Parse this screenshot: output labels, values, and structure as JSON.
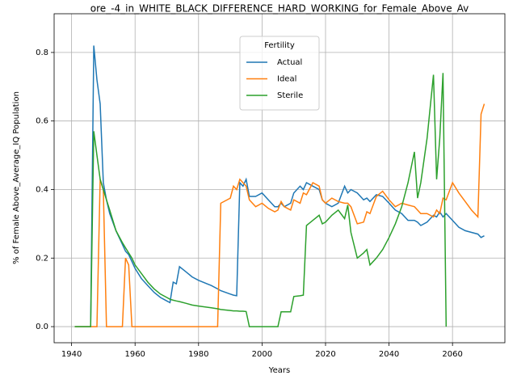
{
  "chart_data": {
    "type": "line",
    "title": "ore_-4_in_WHITE_BLACK_DIFFERENCE_HARD_WORKING_for_Female_Above_Av",
    "xlabel": "Years",
    "ylabel": "% of Female Above_Average_IQ Population",
    "x": [
      1941,
      1946,
      1947,
      1948,
      1949,
      1950,
      1951,
      1952,
      1954,
      1956,
      1957,
      1958,
      1959,
      1960,
      1962,
      1964,
      1966,
      1968,
      1970,
      1971,
      1972,
      1973,
      1974,
      1976,
      1978,
      1980,
      1984,
      1986,
      1987,
      1990,
      1991,
      1992,
      1993,
      1994,
      1995,
      1996,
      1998,
      2000,
      2002,
      2004,
      2005,
      2006,
      2007,
      2009,
      2010,
      2012,
      2013,
      2014,
      2016,
      2018,
      2019,
      2020,
      2022,
      2024,
      2026,
      2027,
      2028,
      2030,
      2032,
      2033,
      2034,
      2036,
      2038,
      2040,
      2042,
      2044,
      2046,
      2048,
      2049,
      2050,
      2052,
      2054,
      2055,
      2056,
      2057,
      2058,
      2060,
      2062,
      2064,
      2066,
      2068,
      2069,
      2070
    ],
    "series": [
      {
        "name": "Actual",
        "color": "#1f77b4",
        "values": [
          0,
          0,
          0.82,
          0.72,
          0.65,
          0.42,
          0.37,
          0.33,
          0.28,
          0.24,
          0.22,
          0.21,
          0.19,
          0.17,
          0.14,
          0.12,
          0.1,
          0.085,
          0.075,
          0.07,
          0.13,
          0.125,
          0.175,
          0.16,
          0.145,
          0.135,
          0.12,
          0.11,
          0.105,
          0.095,
          0.092,
          0.09,
          0.42,
          0.41,
          0.43,
          0.38,
          0.38,
          0.39,
          0.37,
          0.35,
          0.35,
          0.36,
          0.35,
          0.36,
          0.39,
          0.41,
          0.4,
          0.42,
          0.41,
          0.4,
          0.37,
          0.36,
          0.35,
          0.36,
          0.41,
          0.39,
          0.4,
          0.39,
          0.37,
          0.375,
          0.365,
          0.385,
          0.38,
          0.36,
          0.34,
          0.33,
          0.31,
          0.31,
          0.305,
          0.295,
          0.305,
          0.325,
          0.32,
          0.335,
          0.32,
          0.33,
          0.31,
          0.29,
          0.28,
          0.275,
          0.27,
          0.26,
          0.265
        ]
      },
      {
        "name": "Ideal",
        "color": "#ff7f0e",
        "values": [
          0,
          0,
          0,
          0,
          0.43,
          0.4,
          0,
          0,
          0,
          0,
          0.2,
          0.18,
          0,
          0,
          0,
          0,
          0,
          0,
          0,
          0,
          0,
          0,
          0,
          0,
          0,
          0,
          0,
          0,
          0.36,
          0.375,
          0.41,
          0.4,
          0.43,
          0.42,
          0.41,
          0.37,
          0.35,
          0.36,
          0.345,
          0.335,
          0.34,
          0.365,
          0.35,
          0.34,
          0.37,
          0.36,
          0.39,
          0.385,
          0.42,
          0.41,
          0.37,
          0.36,
          0.375,
          0.365,
          0.36,
          0.36,
          0.35,
          0.3,
          0.305,
          0.335,
          0.33,
          0.38,
          0.395,
          0.37,
          0.35,
          0.36,
          0.355,
          0.35,
          0.34,
          0.33,
          0.33,
          0.32,
          0.34,
          0.33,
          0.375,
          0.37,
          0.42,
          0.39,
          0.365,
          0.34,
          0.32,
          0.62,
          0.65
        ]
      },
      {
        "name": "Sterile",
        "color": "#2ca02c",
        "values": [
          0,
          0,
          0.57,
          0.5,
          0.43,
          0.4,
          0.37,
          0.34,
          0.28,
          0.245,
          0.23,
          0.215,
          0.2,
          0.18,
          0.155,
          0.13,
          0.11,
          0.095,
          0.085,
          0.08,
          0.077,
          0.075,
          0.073,
          0.068,
          0.063,
          0.06,
          0.055,
          0.052,
          0.05,
          0.047,
          0.046,
          0.046,
          0.045,
          0.045,
          0.044,
          0,
          0,
          0,
          0,
          0,
          0,
          0.043,
          0.043,
          0.043,
          0.088,
          0.09,
          0.092,
          0.295,
          0.31,
          0.325,
          0.3,
          0.305,
          0.325,
          0.34,
          0.315,
          0.355,
          0.275,
          0.2,
          0.215,
          0.225,
          0.18,
          0.2,
          0.225,
          0.26,
          0.3,
          0.35,
          0.42,
          0.51,
          0.375,
          0.42,
          0.55,
          0.735,
          0.43,
          0.55,
          0.74,
          0,
          null,
          null,
          null,
          null,
          null,
          null,
          null
        ]
      }
    ],
    "xlim": [
      1934.5,
      2076.5
    ],
    "ylim": [
      -0.047,
      0.913
    ],
    "xticks": [
      1940,
      1960,
      1980,
      2000,
      2020,
      2040,
      2060
    ],
    "yticks": [
      {
        "value": 0,
        "label": "0.0"
      },
      0.2,
      0.4,
      0.6,
      0.8
    ],
    "grid": true,
    "legend": {
      "title": "Fertility",
      "position": "upper center"
    }
  }
}
